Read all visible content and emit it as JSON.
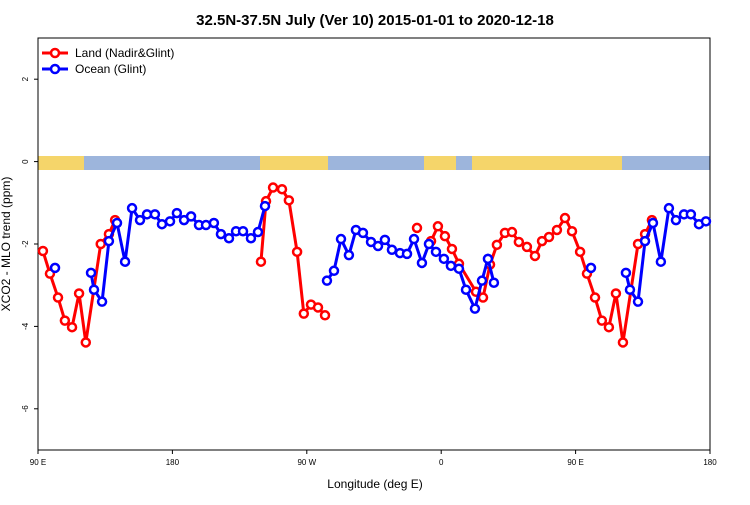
{
  "chart_data": {
    "type": "line",
    "title": "32.5N-37.5N July (Ver 10)   2015-01-01 to 2020-12-18",
    "x_label": "Longitude (deg E)",
    "y_label": "XCO2 - MLO trend (ppm)",
    "xlim": [
      90,
      540
    ],
    "xticks": [
      {
        "value": 90,
        "label": "90 E"
      },
      {
        "value": 180,
        "label": "180"
      },
      {
        "value": 270,
        "label": "90 W"
      },
      {
        "value": 360,
        "label": "0"
      },
      {
        "value": 450,
        "label": "90 E"
      },
      {
        "value": 540,
        "label": "180"
      }
    ],
    "ylim": [
      -7,
      3
    ],
    "yticks": [
      -6,
      -4,
      -2,
      0,
      2
    ],
    "legend": "top-left",
    "series": [
      {
        "name": "Land (Nadir&Glint)",
        "color": "#ff0000",
        "x": [
          93.3,
          98,
          103.4,
          108,
          112.8,
          117.5,
          122,
          132,
          137.5,
          141.6,
          null,
          239.3,
          242.7,
          247.4,
          253.4,
          258,
          263.5,
          268,
          272.8,
          277.5,
          282.2,
          null,
          343.8,
          null,
          353.2,
          357.8,
          362.5,
          367.2,
          371.9,
          383.3,
          388,
          392.7,
          397.3,
          402.7,
          407.4,
          412,
          417.4,
          422.8,
          427.5,
          432.2,
          437.5,
          442.9,
          447.6,
          453,
          457.6,
          463,
          467.6,
          472.3,
          477,
          481.7,
          491.8,
          496.5,
          501.1
        ],
        "values": [
          -2.17,
          -2.72,
          -3.3,
          -3.86,
          -4.02,
          -3.2,
          -4.39,
          -2.0,
          -1.76,
          -1.42,
          null,
          -2.43,
          -0.96,
          -0.63,
          -0.67,
          -0.94,
          -2.19,
          -3.69,
          -3.47,
          -3.54,
          -3.73,
          null,
          -1.61,
          null,
          -1.93,
          -1.57,
          -1.81,
          -2.12,
          -2.48,
          -3.16,
          -3.3,
          -2.5,
          -2.02,
          -1.73,
          -1.71,
          -1.95,
          -2.07,
          -2.29,
          -1.93,
          -1.83,
          -1.66,
          -1.37,
          -1.69,
          -2.19,
          -2.72,
          -3.3,
          -3.86,
          -4.02,
          -3.2,
          -4.39,
          -2.0,
          -1.76,
          -1.42
        ]
      },
      {
        "name": "Ocean (Glint)",
        "color": "#0000ff",
        "x": [
          101.4,
          null,
          125.5,
          127.5,
          132.9,
          137.5,
          142.9,
          148.3,
          153,
          158.3,
          163,
          168.3,
          173,
          178.4,
          183,
          187.8,
          192.5,
          197.8,
          202.5,
          207.8,
          212.5,
          217.9,
          222.6,
          227.3,
          232.6,
          237.3,
          242,
          null,
          283.5,
          288.2,
          292.9,
          298.2,
          302.9,
          307.6,
          313,
          317.7,
          322.3,
          327,
          332.4,
          337.1,
          341.8,
          347.1,
          351.8,
          356.5,
          361.8,
          366.5,
          371.9,
          376.6,
          382.6,
          387.3,
          391.3,
          395.3,
          null,
          460.3,
          null,
          483.7,
          486.4,
          491.8,
          496.5,
          501.8,
          507.1,
          512.5,
          517.2,
          522.6,
          527.2,
          532.6,
          537.3
        ],
        "values": [
          -2.58,
          null,
          -2.7,
          -3.11,
          -3.4,
          -1.93,
          -1.49,
          -2.43,
          -1.13,
          -1.42,
          -1.28,
          -1.28,
          -1.52,
          -1.45,
          -1.25,
          -1.42,
          -1.33,
          -1.54,
          -1.54,
          -1.49,
          -1.76,
          -1.86,
          -1.69,
          -1.69,
          -1.86,
          -1.71,
          -1.08,
          null,
          -2.89,
          -2.65,
          -1.88,
          -2.27,
          -1.66,
          -1.73,
          -1.95,
          -2.05,
          -1.9,
          -2.14,
          -2.22,
          -2.24,
          -1.88,
          -2.46,
          -2.0,
          -2.19,
          -2.36,
          -2.53,
          -2.6,
          -3.11,
          -3.57,
          -2.89,
          -2.36,
          -2.94,
          null,
          -2.58,
          null,
          -2.7,
          -3.11,
          -3.4,
          -1.93,
          -1.49,
          -2.43,
          -1.13,
          -1.42,
          -1.28,
          -1.28,
          -1.52,
          -1.45
        ]
      }
    ]
  }
}
